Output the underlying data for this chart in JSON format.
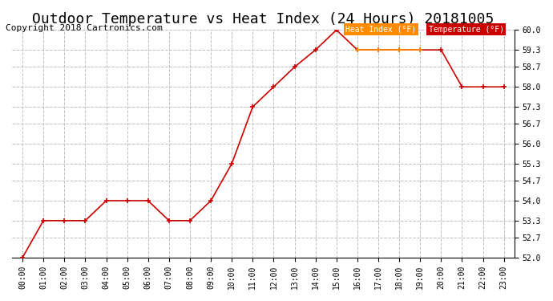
{
  "title": "Outdoor Temperature vs Heat Index (24 Hours) 20181005",
  "copyright": "Copyright 2018 Cartronics.com",
  "hours": [
    "00:00",
    "01:00",
    "02:00",
    "03:00",
    "04:00",
    "05:00",
    "06:00",
    "07:00",
    "08:00",
    "09:00",
    "10:00",
    "11:00",
    "12:00",
    "13:00",
    "14:00",
    "15:00",
    "16:00",
    "17:00",
    "18:00",
    "19:00",
    "20:00",
    "21:00",
    "22:00",
    "23:00"
  ],
  "temperature": [
    52.0,
    53.3,
    53.3,
    53.3,
    54.0,
    54.0,
    54.0,
    53.3,
    53.3,
    54.0,
    55.3,
    57.3,
    58.0,
    58.7,
    59.3,
    60.0,
    59.3,
    59.3,
    59.3,
    59.3,
    59.3,
    58.0,
    58.0,
    58.0
  ],
  "heat_index": [
    null,
    null,
    null,
    null,
    null,
    null,
    null,
    null,
    null,
    null,
    null,
    null,
    null,
    null,
    null,
    null,
    59.3,
    59.3,
    59.3,
    59.3,
    null,
    null,
    null,
    null
  ],
  "temp_color": "#cc0000",
  "heat_index_color": "#ff8c00",
  "temp_label": "Temperature (°F)",
  "heat_label": "Heat Index (°F)",
  "ylim_min": 52.0,
  "ylim_max": 60.0,
  "yticks": [
    52.0,
    52.7,
    53.3,
    54.0,
    54.7,
    55.3,
    56.0,
    56.7,
    57.3,
    58.0,
    58.7,
    59.3,
    60.0
  ],
  "background_color": "#ffffff",
  "plot_bg_color": "#ffffff",
  "grid_color": "#c0c0c0",
  "title_fontsize": 13,
  "copyright_fontsize": 8
}
